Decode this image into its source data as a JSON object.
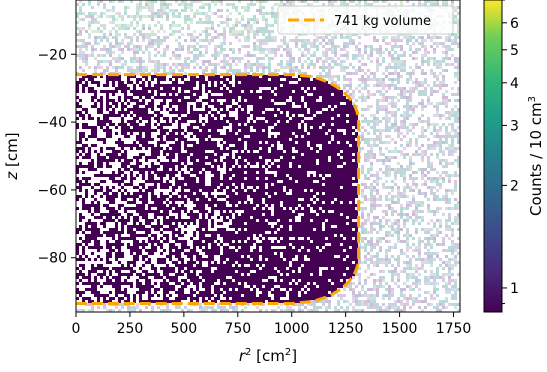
{
  "chart_data": {
    "type": "heatmap",
    "title": "",
    "xlabel": {
      "base": "r",
      "sup": "2",
      "rest": " [cm",
      "sup2": "2",
      "end": "]"
    },
    "ylabel": {
      "base": "z",
      "rest": " [cm]"
    },
    "colorbar_label": {
      "main": "Counts / 10 cm",
      "sup": "3"
    },
    "x_range": [
      0,
      1780
    ],
    "y_range": [
      -96,
      -4
    ],
    "x_ticks": [
      0,
      250,
      500,
      750,
      1000,
      1250,
      1500,
      1750
    ],
    "x_tick_labels": [
      "0",
      "250",
      "500",
      "750",
      "1000",
      "1250",
      "1500",
      "1750"
    ],
    "y_ticks": [
      -20,
      -40,
      -60,
      -80
    ],
    "y_tick_labels": [
      "−20",
      "−40",
      "−60",
      "−80"
    ],
    "colorbar_scale": "log",
    "colorbar_range": [
      0.85,
      7
    ],
    "colorbar_ticks": [
      1,
      2,
      3,
      4,
      5,
      6
    ],
    "colorbar_tick_labels": [
      "1",
      "2",
      "3",
      "4",
      "5",
      "6"
    ],
    "colormap": "viridis",
    "legend": {
      "label": "741 kg volume",
      "placement": "upper right",
      "line_style": "dashed",
      "color": "#ffa500"
    },
    "volume_boundary": {
      "z_top": -26,
      "z_bottom": -93.5,
      "r2_max": 1310,
      "r2_flat_end": 1000,
      "description_points": [
        [
          0,
          -26
        ],
        [
          1000,
          -26
        ],
        [
          1200,
          -32
        ],
        [
          1300,
          -55
        ],
        [
          1310,
          -63
        ],
        [
          1250,
          -82
        ],
        [
          1150,
          -92
        ],
        [
          1000,
          -93.5
        ],
        [
          0,
          -93.5
        ]
      ]
    },
    "grid": false
  }
}
